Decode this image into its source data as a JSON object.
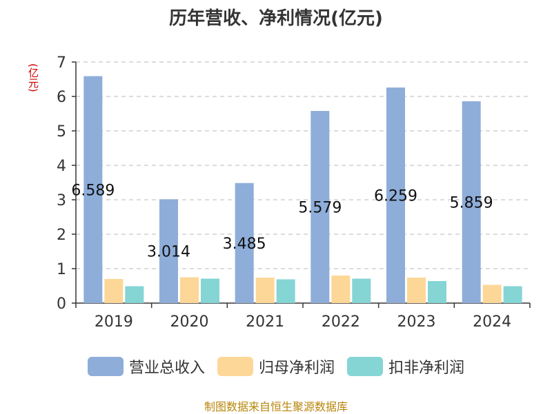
{
  "chart_data": {
    "type": "bar",
    "title": "历年营收、净利情况(亿元)",
    "unit_label": "(亿元)",
    "categories": [
      "2019",
      "2020",
      "2021",
      "2022",
      "2023",
      "2024"
    ],
    "series": [
      {
        "name": "营业总收入",
        "color": "#8eadd9",
        "values": [
          6.589,
          3.014,
          3.485,
          5.579,
          6.259,
          5.859
        ]
      },
      {
        "name": "归母净利润",
        "color": "#fdd797",
        "values": [
          0.7,
          0.75,
          0.74,
          0.8,
          0.74,
          0.53
        ]
      },
      {
        "name": "扣非净利润",
        "color": "#85d5d5",
        "values": [
          0.49,
          0.71,
          0.69,
          0.71,
          0.64,
          0.49
        ]
      }
    ],
    "data_labels": [
      "6.589",
      "3.014",
      "3.485",
      "5.579",
      "6.259",
      "5.859"
    ],
    "y_ticks": [
      "0",
      "1",
      "2",
      "3",
      "4",
      "5",
      "6",
      "7"
    ],
    "ylim": [
      0,
      7
    ],
    "grid": "dashed-horizontal",
    "legend_position": "bottom"
  },
  "footer": {
    "source": "制图数据来自恒生聚源数据库"
  }
}
